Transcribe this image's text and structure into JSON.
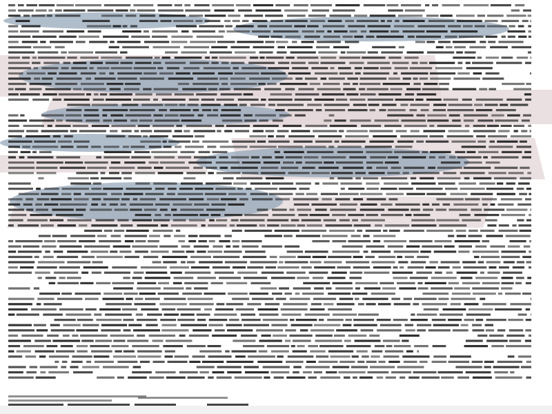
{
  "document": {
    "legible_text": [],
    "colors": {
      "background": "#ffffff",
      "text": "#222222",
      "ellipse_overlay": "#8fa2b6",
      "band_overlay": "#e3d6d8",
      "footer_strip": "#f1f1f1"
    }
  }
}
